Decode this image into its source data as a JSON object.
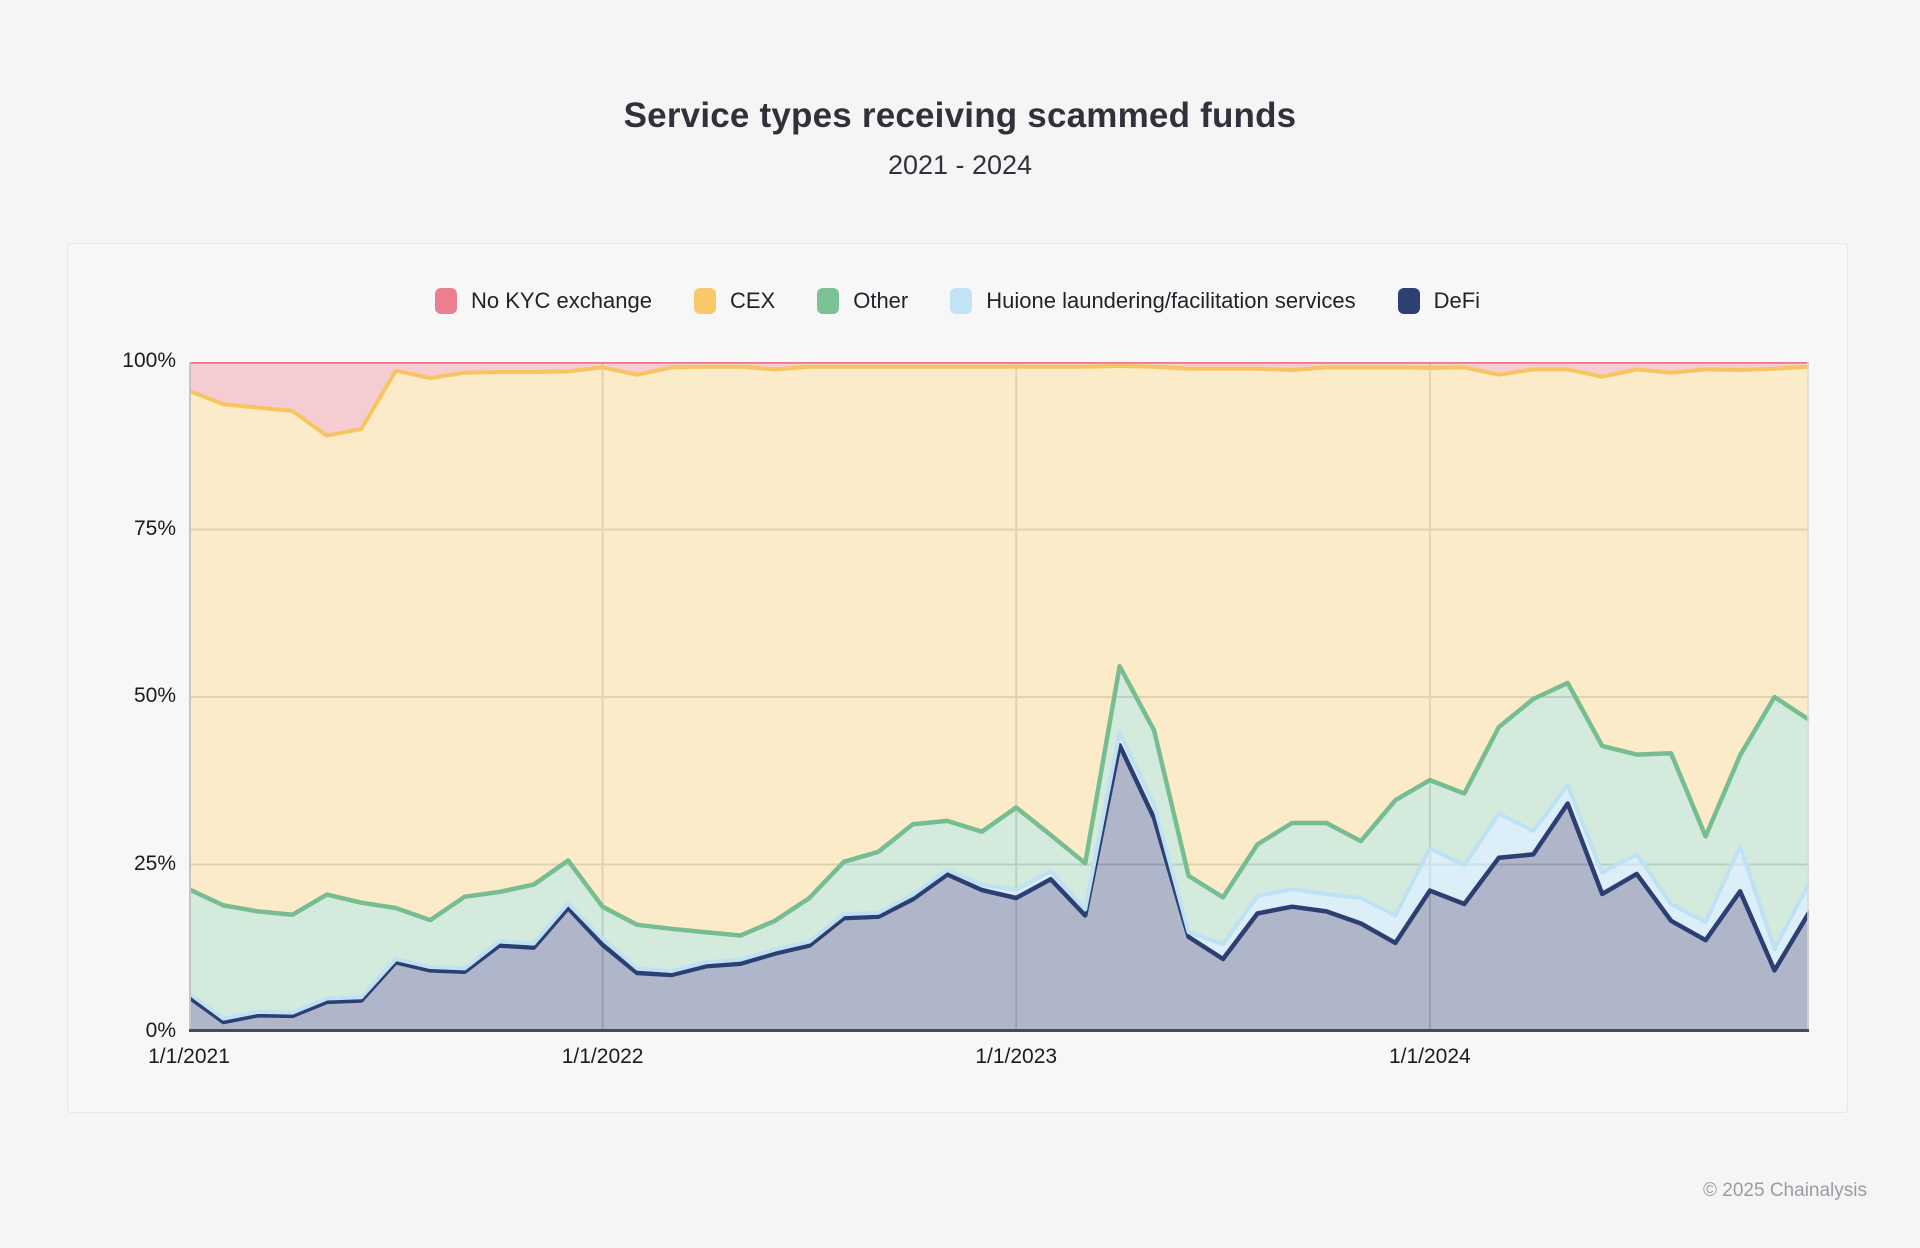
{
  "header": {
    "title": "Service types receiving scammed funds",
    "subtitle": "2021 - 2024"
  },
  "footer": {
    "copyright": "© 2025 Chainalysis"
  },
  "legend": [
    {
      "id": "no-kyc",
      "label": "No KYC exchange",
      "color": "#ec7f8f"
    },
    {
      "id": "cex",
      "label": "CEX",
      "color": "#f7c96b"
    },
    {
      "id": "other",
      "label": "Other",
      "color": "#7cc096"
    },
    {
      "id": "huione",
      "label": "Huione laundering/facilitation services",
      "color": "#c2e2f5"
    },
    {
      "id": "defi",
      "label": "DeFi",
      "color": "#2d3f73"
    }
  ],
  "chart_data": {
    "type": "area",
    "stacked": "percent",
    "title": "Service types receiving scammed funds",
    "subtitle": "2021 - 2024",
    "x_unit": "month",
    "x_range": [
      "1/2021",
      "12/2024"
    ],
    "n_points": 48,
    "grid": true,
    "legend_position": "top",
    "ylim": [
      0,
      100
    ],
    "yticks": [
      {
        "label": "0%",
        "value": 0
      },
      {
        "label": "25%",
        "value": 25
      },
      {
        "label": "50%",
        "value": 50
      },
      {
        "label": "75%",
        "value": 75
      },
      {
        "label": "100%",
        "value": 100
      }
    ],
    "xticks": [
      {
        "label": "1/1/2021",
        "month": 0
      },
      {
        "label": "1/1/2022",
        "month": 12
      },
      {
        "label": "1/1/2023",
        "month": 24
      },
      {
        "label": "1/1/2024",
        "month": 36
      }
    ],
    "series_bottom_to_top": [
      {
        "id": "defi",
        "name": "DeFi",
        "line": "#2c3e72",
        "fill": "rgba(44,62,114,0.38)",
        "line_width": 4.5,
        "values": [
          5.2,
          1.5,
          2.5,
          2.4,
          4.5,
          4.7,
          10.4,
          9.2,
          9.0,
          12.9,
          12.6,
          18.5,
          13.0,
          8.8,
          8.5,
          9.8,
          10.2,
          11.7,
          12.9,
          17.0,
          17.2,
          19.8,
          23.5,
          21.2,
          20.0,
          22.8,
          17.4,
          42.8,
          31.9,
          14.2,
          10.9,
          17.7,
          18.7,
          18.0,
          16.2,
          13.3,
          21.1,
          19.1,
          26.0,
          26.5,
          34.1,
          20.6,
          23.6,
          16.6,
          13.7,
          21.0,
          9.2,
          17.8
        ]
      },
      {
        "id": "huione",
        "name": "Huione laundering/facilitation services",
        "line": "#bfe1f4",
        "fill": "rgba(191,225,244,0.55)",
        "line_width": 4,
        "values": [
          0.6,
          0.5,
          0.5,
          0.5,
          0.5,
          0.5,
          0.5,
          0.5,
          0.5,
          0.6,
          0.6,
          0.7,
          0.9,
          0.7,
          0.6,
          0.6,
          0.6,
          0.6,
          0.6,
          0.6,
          0.6,
          0.7,
          0.7,
          0.8,
          1.2,
          1.2,
          0.9,
          1.9,
          2.0,
          0.7,
          2.2,
          2.6,
          2.6,
          2.6,
          3.8,
          4.1,
          6.3,
          5.8,
          6.6,
          3.5,
          2.7,
          3.2,
          2.9,
          2.5,
          2.7,
          6.7,
          3.2,
          4.4
        ]
      },
      {
        "id": "other",
        "name": "Other",
        "line": "#76bd92",
        "fill": "rgba(118,189,146,0.32)",
        "line_width": 4.5,
        "values": [
          15.5,
          16.9,
          15.0,
          14.6,
          15.5,
          14.1,
          7.6,
          7.0,
          10.7,
          7.4,
          8.8,
          6.4,
          4.8,
          6.5,
          6.3,
          4.5,
          3.6,
          4.3,
          6.5,
          7.8,
          9.1,
          10.5,
          7.3,
          7.9,
          12.3,
          5.4,
          6.9,
          9.9,
          11.1,
          8.4,
          7.0,
          7.7,
          9.9,
          10.6,
          8.5,
          17.2,
          10.2,
          10.7,
          12.9,
          19.7,
          15.3,
          18.9,
          14.9,
          22.5,
          12.8,
          13.6,
          37.6,
          24.4
        ]
      },
      {
        "id": "cex",
        "name": "CEX",
        "line": "#f6c561",
        "fill": "rgba(246,197,97,0.35)",
        "line_width": 4,
        "values": [
          74.4,
          74.8,
          75.2,
          75.2,
          68.5,
          70.7,
          80.2,
          80.9,
          78.2,
          77.6,
          76.5,
          73.0,
          80.5,
          82.1,
          83.8,
          84.4,
          84.9,
          82.3,
          79.3,
          73.9,
          72.4,
          68.3,
          67.8,
          69.4,
          65.8,
          69.9,
          74.1,
          44.8,
          54.3,
          75.7,
          78.9,
          71.0,
          67.6,
          68.0,
          70.7,
          64.6,
          61.5,
          63.6,
          52.6,
          49.2,
          46.8,
          55.1,
          57.5,
          56.8,
          69.7,
          57.5,
          49.0,
          52.7
        ]
      },
      {
        "id": "no-kyc",
        "name": "No KYC exchange",
        "line": "#e8798c",
        "fill": "rgba(232,121,140,0.38)",
        "line_width": 3.5,
        "values": [
          4.3,
          6.3,
          6.8,
          7.3,
          11.0,
          10.0,
          1.3,
          2.4,
          1.6,
          1.5,
          1.5,
          1.4,
          0.8,
          1.9,
          0.8,
          0.7,
          0.7,
          1.1,
          0.7,
          0.7,
          0.7,
          0.7,
          0.7,
          0.7,
          0.7,
          0.7,
          0.7,
          0.6,
          0.7,
          1.0,
          1.0,
          1.0,
          1.2,
          0.8,
          0.8,
          0.8,
          0.9,
          0.8,
          1.9,
          1.1,
          1.1,
          2.2,
          1.1,
          1.6,
          1.1,
          1.2,
          1.0,
          0.7
        ]
      }
    ],
    "colors": {
      "grid": "#d9d9dc",
      "y_axis": "#c4c4c9",
      "x_axis": "#4a4a52",
      "plot_background": "#ffffff"
    }
  }
}
